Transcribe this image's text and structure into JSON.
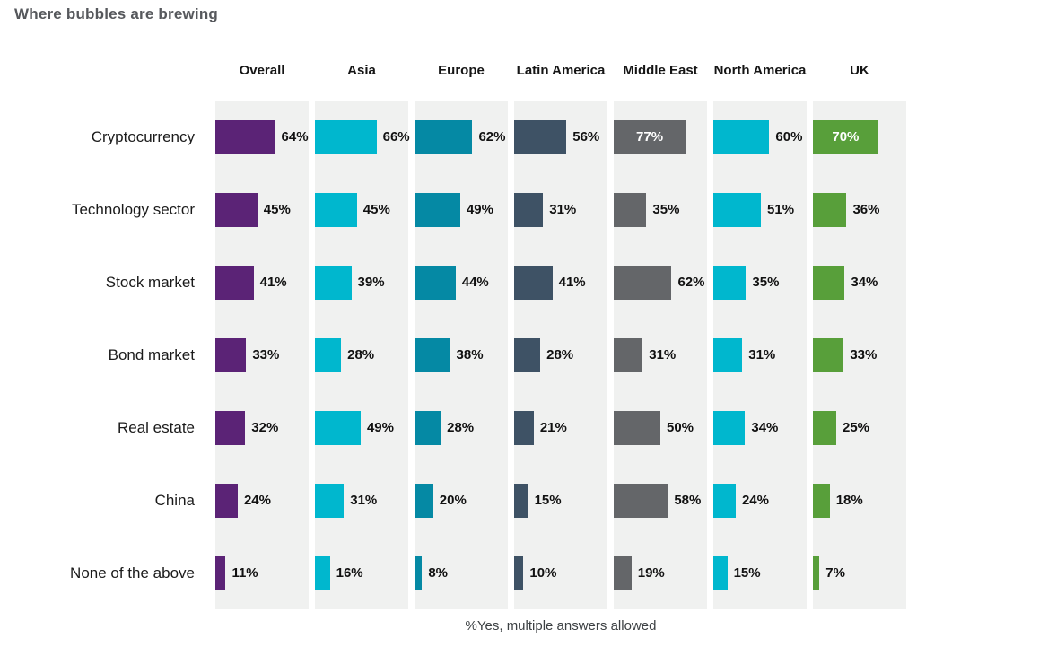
{
  "chart": {
    "title": "Where bubbles are brewing",
    "footnote": "%Yes, multiple answers allowed"
  },
  "chart_data": {
    "type": "bar",
    "orientation": "horizontal",
    "title": "Where bubbles are brewing",
    "note": "%Yes, multiple answers allowed",
    "categories": [
      "Cryptocurrency",
      "Technology sector",
      "Stock market",
      "Bond market",
      "Real estate",
      "China",
      "None of the above"
    ],
    "series": [
      {
        "name": "Overall",
        "color": "#5b2376",
        "values": [
          64,
          45,
          41,
          33,
          32,
          24,
          11
        ]
      },
      {
        "name": "Asia",
        "color": "#00b7ce",
        "values": [
          66,
          45,
          39,
          28,
          49,
          31,
          16
        ]
      },
      {
        "name": "Europe",
        "color": "#0589a4",
        "values": [
          62,
          49,
          44,
          38,
          28,
          20,
          8
        ]
      },
      {
        "name": "Latin America",
        "color": "#3e5265",
        "values": [
          56,
          31,
          41,
          28,
          21,
          15,
          10
        ]
      },
      {
        "name": "Middle East",
        "color": "#646669",
        "values": [
          77,
          35,
          62,
          31,
          50,
          58,
          19
        ]
      },
      {
        "name": "North America",
        "color": "#00b7ce",
        "values": [
          60,
          51,
          35,
          31,
          34,
          24,
          15
        ]
      },
      {
        "name": "UK",
        "color": "#589f3a",
        "values": [
          70,
          36,
          34,
          33,
          25,
          18,
          7
        ]
      }
    ],
    "value_suffix": "%",
    "xlim": [
      0,
      100
    ],
    "grid": false,
    "legend": "column-headers",
    "label_inside_threshold": 70,
    "panel_bg": "#f0f1f0"
  }
}
